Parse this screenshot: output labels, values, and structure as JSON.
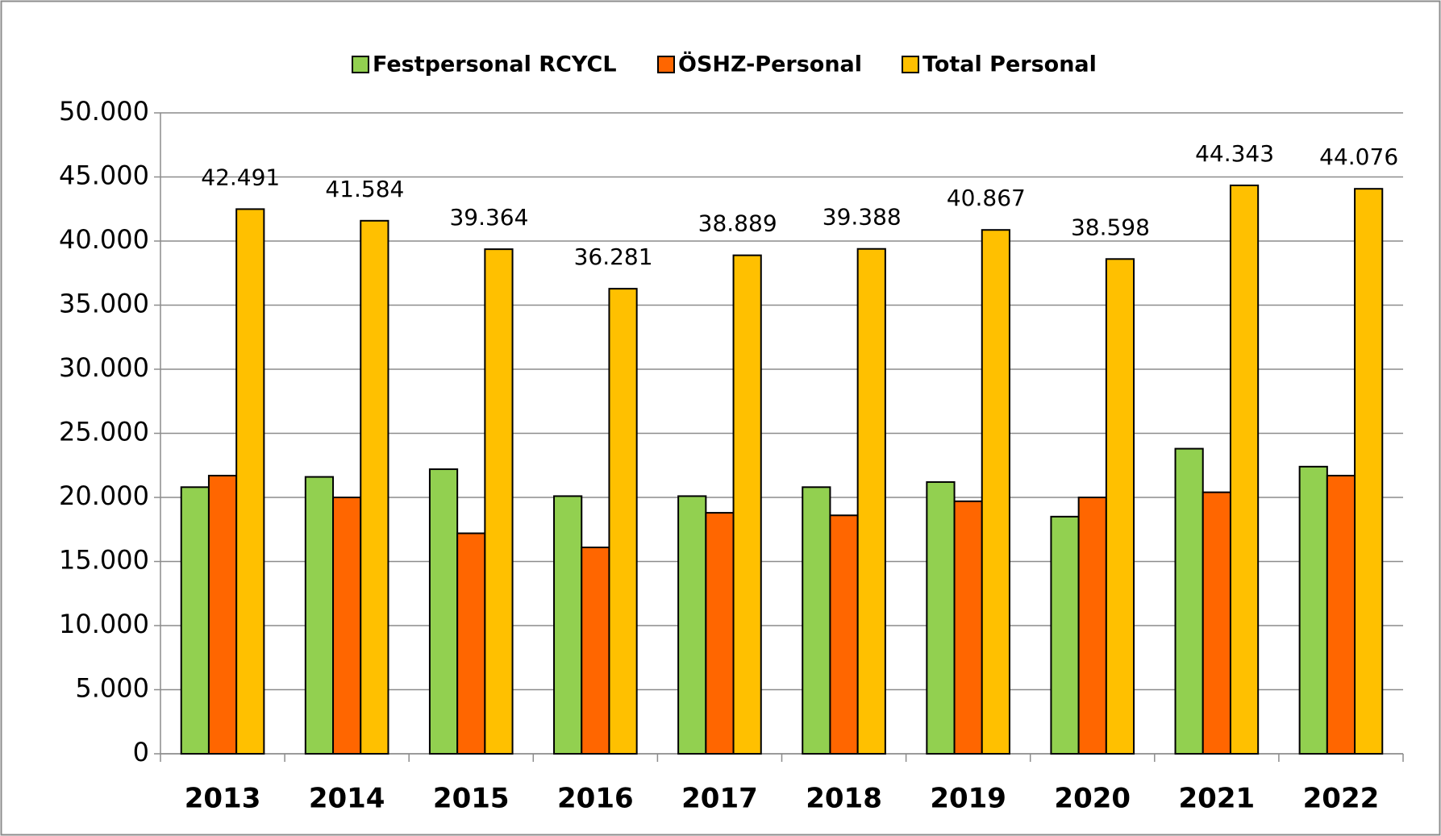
{
  "chart_data": {
    "type": "bar",
    "categories": [
      "2013",
      "2014",
      "2015",
      "2016",
      "2017",
      "2018",
      "2019",
      "2020",
      "2021",
      "2022"
    ],
    "series": [
      {
        "name": "Festpersonal RCYCL",
        "color": "#92d050",
        "values": [
          20800,
          21600,
          22200,
          20100,
          20100,
          20800,
          21200,
          18500,
          23800,
          22400
        ]
      },
      {
        "name": "ÖSHZ-Personal",
        "color": "#ff6600",
        "values": [
          21700,
          20000,
          17200,
          16100,
          18800,
          18600,
          19700,
          20000,
          20400,
          21700
        ]
      },
      {
        "name": "Total Personal",
        "color": "#ffc000",
        "values": [
          42491,
          41584,
          39364,
          36281,
          38889,
          39388,
          40867,
          38598,
          44343,
          44076
        ],
        "value_labels": [
          "42.491",
          "41.584",
          "39.364",
          "36.281",
          "38.889",
          "39.388",
          "40.867",
          "38.598",
          "44.343",
          "44.076"
        ]
      }
    ],
    "ylim": [
      0,
      50000
    ],
    "yticks": [
      0,
      {
        "value": 5000,
        "label": "5.000"
      },
      {
        "value": 10000,
        "label": "10.000"
      },
      {
        "value": 15000,
        "label": "15.000"
      },
      {
        "value": 20000,
        "label": "20.000"
      },
      {
        "value": 25000,
        "label": "25.000"
      },
      {
        "value": 30000,
        "label": "30.000"
      },
      {
        "value": 35000,
        "label": "35.000"
      },
      {
        "value": 40000,
        "label": "40.000"
      },
      {
        "value": 45000,
        "label": "45.000"
      },
      {
        "value": 50000,
        "label": "50.000"
      }
    ],
    "grid": true,
    "legend": "top"
  }
}
